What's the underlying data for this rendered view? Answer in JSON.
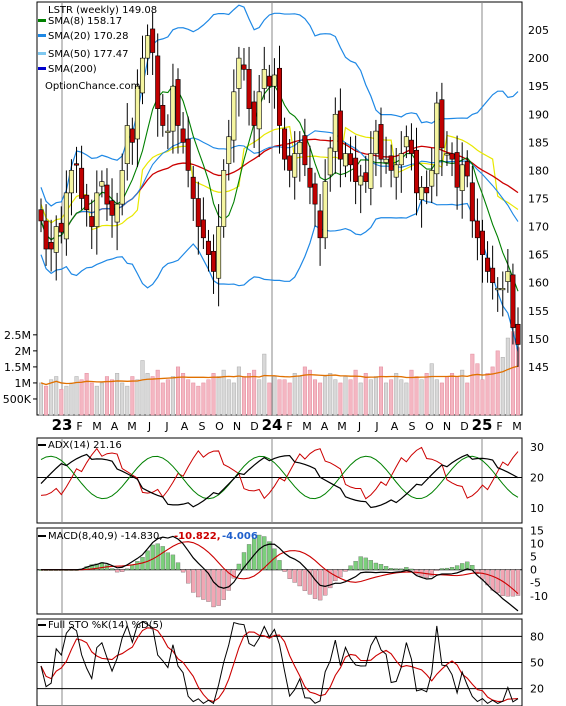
{
  "chart_data": [
    {
      "type": "candlestick",
      "title": "LSTR (weekly) 149.08",
      "legend": [
        {
          "label": "SMA(8) 158.17",
          "color": "#008000"
        },
        {
          "label": "SMA(20) 170.28",
          "color": "#1e88e5"
        },
        {
          "label": "SMA(50) 177.47",
          "color": "#7ec8f0"
        },
        {
          "label": "SMA(200)",
          "color": "#0000cc"
        }
      ],
      "watermark": "OptionChance.com",
      "ylim": [
        140,
        210
      ],
      "yticks": [
        "145",
        "150",
        "155",
        "160",
        "165",
        "170",
        "175",
        "180",
        "185",
        "190",
        "195",
        "200",
        "205"
      ],
      "x_labels": [
        "23",
        "F",
        "M",
        "A",
        "M",
        "J",
        "J",
        "A",
        "S",
        "O",
        "N",
        "D",
        "24",
        "F",
        "M",
        "A",
        "M",
        "J",
        "J",
        "A",
        "S",
        "O",
        "N",
        "D",
        "25",
        "F",
        "M"
      ],
      "close": [
        171,
        166,
        166,
        170,
        169,
        176,
        180,
        181,
        175,
        173,
        170,
        176,
        178,
        174,
        172,
        174,
        180,
        188,
        185,
        195,
        200,
        204,
        201,
        191,
        188,
        187,
        195,
        188,
        185,
        180,
        175,
        170,
        168,
        165,
        162,
        170,
        180,
        186,
        194,
        200,
        198,
        191,
        188,
        194,
        198,
        195,
        197,
        188,
        182,
        180,
        183,
        185,
        181,
        177,
        174,
        168,
        178,
        184,
        190,
        182,
        183,
        181,
        178,
        179,
        178,
        183,
        187,
        182,
        182,
        180,
        181,
        183,
        186,
        183,
        176,
        177,
        176,
        180,
        192,
        184,
        183,
        182,
        177,
        181,
        179,
        171,
        168,
        165,
        162,
        160,
        159,
        159,
        162,
        152,
        149
      ],
      "volume_ylabels": [
        "2.5M",
        "2M",
        "1.5M",
        "1M",
        "500K"
      ],
      "volume": [
        1.0,
        0.9,
        1.1,
        1.2,
        0.8,
        0.9,
        1.0,
        1.2,
        1.1,
        1.3,
        1.0,
        0.9,
        1.0,
        1.2,
        1.1,
        1.3,
        1.0,
        0.9,
        1.2,
        1.1,
        1.7,
        1.3,
        1.2,
        1.4,
        1.0,
        1.1,
        1.2,
        1.5,
        1.3,
        1.1,
        1.0,
        0.9,
        1.0,
        1.1,
        1.3,
        1.2,
        1.4,
        1.1,
        1.0,
        1.5,
        1.2,
        1.3,
        1.4,
        1.1,
        1.9,
        1.0,
        1.2,
        1.1,
        1.1,
        1.0,
        1.3,
        1.2,
        1.5,
        1.4,
        1.1,
        1.0,
        1.2,
        1.3,
        1.1,
        1.0,
        1.2,
        1.1,
        1.4,
        1.0,
        1.3,
        1.1,
        1.2,
        1.5,
        1.0,
        1.1,
        1.3,
        1.1,
        1.0,
        1.4,
        1.2,
        1.1,
        1.3,
        1.6,
        1.1,
        1.0,
        1.2,
        1.3,
        1.2,
        1.4,
        1.0,
        1.9,
        1.6,
        1.1,
        1.3,
        1.5,
        2.0,
        1.8,
        2.4,
        2.6,
        2.1
      ]
    },
    {
      "type": "line",
      "title": "ADX(14) 21.16",
      "ylim": [
        5,
        33
      ],
      "yticks": [
        "10",
        "20",
        "30"
      ]
    },
    {
      "type": "line",
      "title": "MACD(8,40,9) -14.830,",
      "values_text": [
        "-10.822,",
        "-4.006"
      ],
      "value_colors": [
        "#cc0000",
        "#1e5fcc"
      ],
      "ylim": [
        -17,
        16
      ],
      "yticks": [
        "15",
        "10",
        "5",
        "0",
        "-5",
        "-10"
      ]
    },
    {
      "type": "line",
      "title": "Full STO %K(14) %D(5)",
      "ylim": [
        0,
        100
      ],
      "yticks": [
        "80",
        "50",
        "20"
      ]
    }
  ],
  "colors": {
    "up": "#f5f5a0",
    "down": "#c00000",
    "sma8": "#008000",
    "sma20": "#1e88e5",
    "sma50": "#e8e800",
    "trend": "#cc0000",
    "vol_up": "#d8d8d8",
    "vol_down": "#f4b6c2",
    "vol_avg": "#e07000"
  }
}
